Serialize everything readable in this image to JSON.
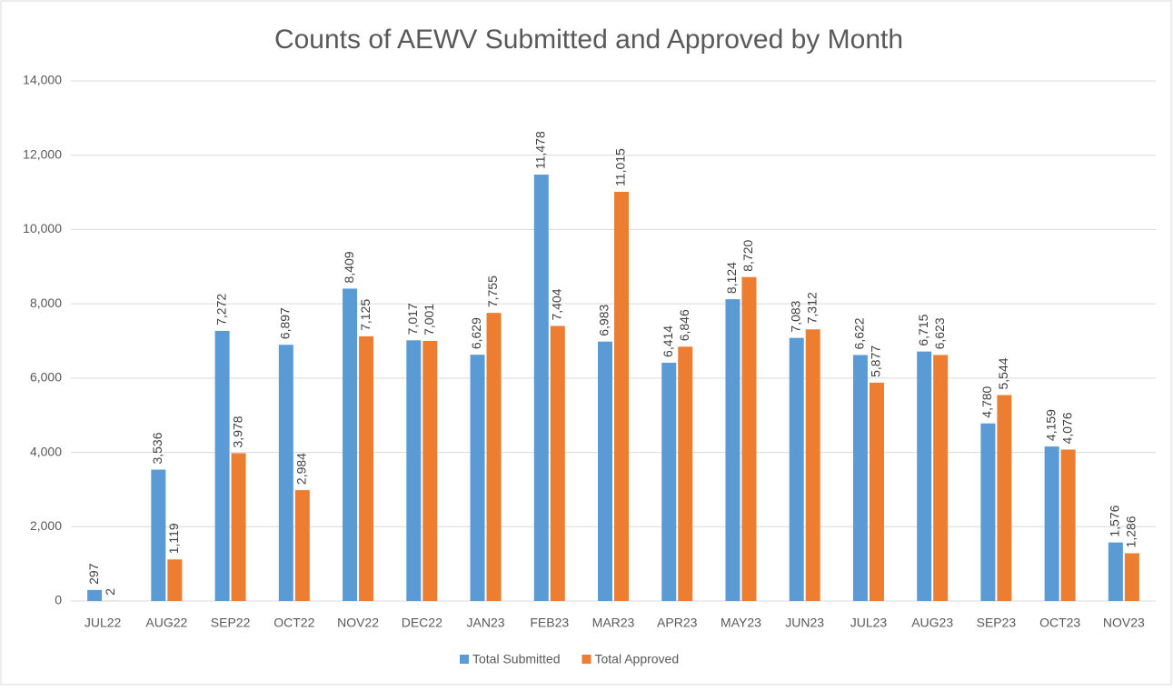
{
  "chart_data": {
    "type": "bar",
    "title": "Counts of AEWV Submitted and Approved by Month",
    "categories": [
      "JUL22",
      "AUG22",
      "SEP22",
      "OCT22",
      "NOV22",
      "DEC22",
      "JAN23",
      "FEB23",
      "MAR23",
      "APR23",
      "MAY23",
      "JUN23",
      "JUL23",
      "AUG23",
      "SEP23",
      "OCT23",
      "NOV23"
    ],
    "series": [
      {
        "name": "Total Submitted",
        "color": "#5b9bd5",
        "values": [
          297,
          3536,
          7272,
          6897,
          8409,
          7017,
          6629,
          11478,
          6983,
          6414,
          8124,
          7083,
          6622,
          6715,
          4780,
          4159,
          1576
        ],
        "value_labels": [
          "297",
          "3,536",
          "7,272",
          "6,897",
          "8,409",
          "7,017",
          "6,629",
          "11,478",
          "6,983",
          "6,414",
          "8,124",
          "7,083",
          "6,622",
          "6,715",
          "4,780",
          "4,159",
          "1,576"
        ]
      },
      {
        "name": "Total Approved",
        "color": "#ed7d31",
        "values": [
          2,
          1119,
          3978,
          2984,
          7125,
          7001,
          7755,
          7404,
          11015,
          6846,
          8720,
          7312,
          5877,
          6623,
          5544,
          4076,
          1286
        ],
        "value_labels": [
          "2",
          "1,119",
          "3,978",
          "2,984",
          "7,125",
          "7,001",
          "7,755",
          "7,404",
          "11,015",
          "6,846",
          "8,720",
          "7,312",
          "5,877",
          "6,623",
          "5,544",
          "4,076",
          "1,286"
        ]
      }
    ],
    "ylim": [
      0,
      14000
    ],
    "yticks": [
      0,
      {
        "value": 2000,
        "label": "2,000"
      },
      {
        "value": 4000,
        "label": "4,000"
      },
      {
        "value": 6000,
        "label": "6,000"
      },
      {
        "value": 8000,
        "label": "8,000"
      },
      {
        "value": 10000,
        "label": "10,000"
      },
      {
        "value": 12000,
        "label": "12,000"
      },
      {
        "value": 14000,
        "label": "14,000"
      }
    ],
    "grid": true,
    "legend": "bottom"
  }
}
